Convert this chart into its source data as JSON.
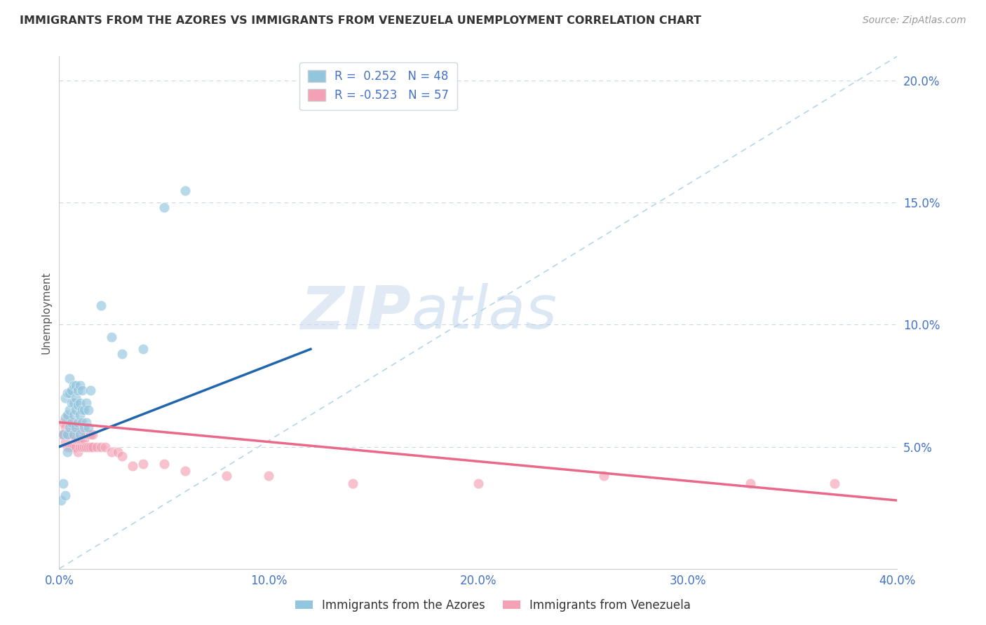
{
  "title": "IMMIGRANTS FROM THE AZORES VS IMMIGRANTS FROM VENEZUELA UNEMPLOYMENT CORRELATION CHART",
  "source": "Source: ZipAtlas.com",
  "ylabel": "Unemployment",
  "xlabel": "",
  "xlim": [
    0.0,
    0.4
  ],
  "ylim": [
    0.0,
    0.21
  ],
  "yticks": [
    0.05,
    0.1,
    0.15,
    0.2
  ],
  "ytick_labels": [
    "5.0%",
    "10.0%",
    "15.0%",
    "20.0%"
  ],
  "xticks": [
    0.0,
    0.1,
    0.2,
    0.3,
    0.4
  ],
  "xtick_labels": [
    "0.0%",
    "10.0%",
    "20.0%",
    "30.0%",
    "40.0%"
  ],
  "azores_R": 0.252,
  "azores_N": 48,
  "venezuela_R": -0.523,
  "venezuela_N": 57,
  "azores_color": "#92c5de",
  "venezuela_color": "#f4a0b5",
  "azores_line_color": "#2166ac",
  "venezuela_line_color": "#e8698a",
  "trend_line_color": "#92c5de",
  "background_color": "#ffffff",
  "watermark_zip": "ZIP",
  "watermark_atlas": "atlas",
  "azores_scatter_x": [
    0.001,
    0.002,
    0.002,
    0.003,
    0.003,
    0.003,
    0.004,
    0.004,
    0.004,
    0.004,
    0.005,
    0.005,
    0.005,
    0.005,
    0.006,
    0.006,
    0.006,
    0.007,
    0.007,
    0.007,
    0.007,
    0.008,
    0.008,
    0.008,
    0.008,
    0.009,
    0.009,
    0.009,
    0.01,
    0.01,
    0.01,
    0.01,
    0.011,
    0.011,
    0.011,
    0.012,
    0.012,
    0.013,
    0.013,
    0.014,
    0.014,
    0.015,
    0.02,
    0.025,
    0.03,
    0.04,
    0.05,
    0.06
  ],
  "azores_scatter_y": [
    0.028,
    0.035,
    0.055,
    0.03,
    0.062,
    0.07,
    0.048,
    0.055,
    0.063,
    0.072,
    0.058,
    0.065,
    0.072,
    0.078,
    0.06,
    0.068,
    0.073,
    0.055,
    0.063,
    0.068,
    0.075,
    0.058,
    0.065,
    0.07,
    0.075,
    0.06,
    0.067,
    0.073,
    0.055,
    0.063,
    0.068,
    0.075,
    0.06,
    0.065,
    0.073,
    0.058,
    0.065,
    0.06,
    0.068,
    0.058,
    0.065,
    0.073,
    0.108,
    0.095,
    0.088,
    0.09,
    0.148,
    0.155
  ],
  "venezuela_scatter_x": [
    0.001,
    0.002,
    0.002,
    0.003,
    0.003,
    0.004,
    0.004,
    0.004,
    0.005,
    0.005,
    0.005,
    0.006,
    0.006,
    0.006,
    0.007,
    0.007,
    0.007,
    0.008,
    0.008,
    0.008,
    0.009,
    0.009,
    0.009,
    0.01,
    0.01,
    0.01,
    0.011,
    0.011,
    0.011,
    0.012,
    0.012,
    0.012,
    0.013,
    0.013,
    0.014,
    0.014,
    0.015,
    0.015,
    0.016,
    0.016,
    0.018,
    0.02,
    0.022,
    0.025,
    0.028,
    0.03,
    0.035,
    0.04,
    0.05,
    0.06,
    0.08,
    0.1,
    0.14,
    0.2,
    0.26,
    0.33,
    0.37
  ],
  "venezuela_scatter_y": [
    0.055,
    0.055,
    0.06,
    0.052,
    0.058,
    0.05,
    0.055,
    0.062,
    0.05,
    0.055,
    0.06,
    0.05,
    0.055,
    0.06,
    0.05,
    0.055,
    0.058,
    0.05,
    0.053,
    0.058,
    0.048,
    0.053,
    0.058,
    0.05,
    0.053,
    0.06,
    0.05,
    0.053,
    0.057,
    0.05,
    0.053,
    0.058,
    0.05,
    0.055,
    0.05,
    0.055,
    0.05,
    0.055,
    0.05,
    0.055,
    0.05,
    0.05,
    0.05,
    0.048,
    0.048,
    0.046,
    0.042,
    0.043,
    0.043,
    0.04,
    0.038,
    0.038,
    0.035,
    0.035,
    0.038,
    0.035,
    0.035
  ],
  "azores_line_x": [
    0.0,
    0.12
  ],
  "azores_line_y": [
    0.05,
    0.09
  ],
  "venezuela_line_x": [
    0.0,
    0.4
  ],
  "venezuela_line_y": [
    0.06,
    0.028
  ],
  "diag_line_x": [
    0.0,
    0.4
  ],
  "diag_line_y": [
    0.0,
    0.21
  ]
}
